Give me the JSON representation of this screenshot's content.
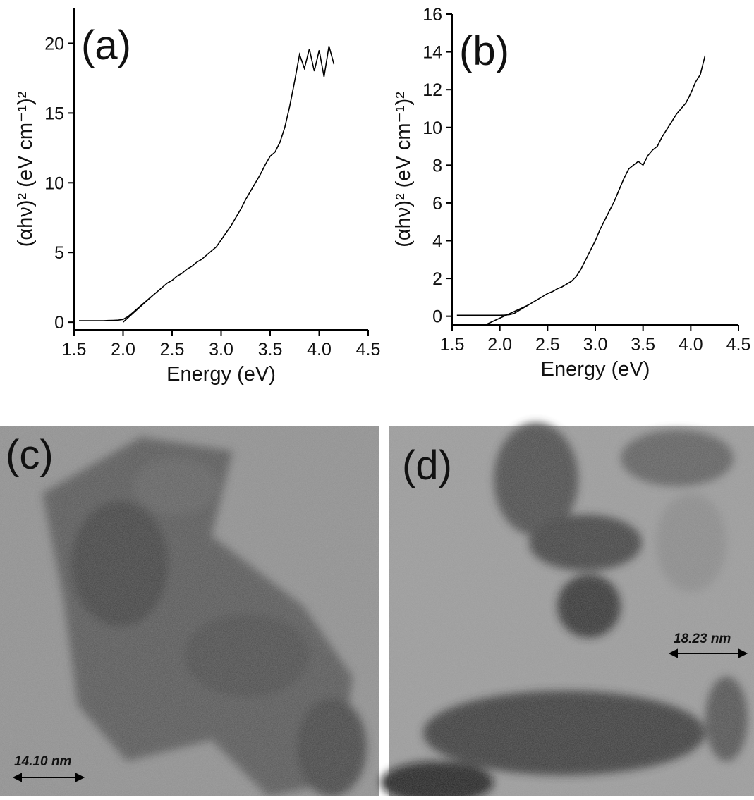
{
  "chart_data": [
    {
      "type": "line",
      "annotation": "(a)",
      "xlabel": "Energy (eV)",
      "ylabel": "(αhν)² (eV cm⁻¹)²",
      "color": "#000000",
      "x": [
        1.55,
        1.6,
        1.65,
        1.7,
        1.75,
        1.8,
        1.85,
        1.9,
        1.95,
        2.0,
        2.05,
        2.1,
        2.15,
        2.2,
        2.25,
        2.3,
        2.35,
        2.4,
        2.45,
        2.5,
        2.55,
        2.6,
        2.65,
        2.7,
        2.75,
        2.8,
        2.85,
        2.9,
        2.95,
        3.0,
        3.05,
        3.1,
        3.15,
        3.2,
        3.25,
        3.3,
        3.35,
        3.4,
        3.45,
        3.5,
        3.55,
        3.6,
        3.65,
        3.7,
        3.75,
        3.8,
        3.85,
        3.9,
        3.95,
        4.0,
        4.05,
        4.1,
        4.15
      ],
      "values": [
        0.1,
        0.1,
        0.1,
        0.1,
        0.1,
        0.1,
        0.12,
        0.13,
        0.15,
        0.2,
        0.4,
        0.7,
        1.0,
        1.3,
        1.6,
        1.9,
        2.2,
        2.5,
        2.8,
        3.0,
        3.3,
        3.5,
        3.8,
        4.0,
        4.3,
        4.5,
        4.8,
        5.1,
        5.4,
        5.9,
        6.4,
        6.9,
        7.5,
        8.1,
        8.8,
        9.4,
        10.0,
        10.6,
        11.3,
        11.9,
        12.2,
        12.9,
        14.0,
        15.5,
        17.3,
        19.2,
        18.2,
        19.6,
        18.0,
        19.5,
        17.6,
        19.8,
        18.5
      ],
      "fit_line": {
        "x": [
          2.0,
          2.3
        ],
        "values": [
          0,
          1.9
        ]
      },
      "xlim": [
        1.5,
        4.5
      ],
      "xticks": [
        1.5,
        {
          "value": 2,
          "label": "2.0"
        },
        2.5,
        {
          "value": 3,
          "label": "3.0"
        },
        3.5,
        {
          "value": 4,
          "label": "4.0"
        },
        4.5
      ],
      "ylim": [
        -0.55,
        22.5
      ],
      "yticks": [
        0,
        5,
        10,
        15,
        20
      ]
    },
    {
      "type": "line",
      "annotation": "(b)",
      "xlabel": "Energy (eV)",
      "ylabel": "(αhν)² (eV cm⁻¹)²",
      "color": "#000000",
      "x": [
        1.55,
        1.6,
        1.65,
        1.7,
        1.75,
        1.8,
        1.85,
        1.9,
        1.95,
        2.0,
        2.05,
        2.1,
        2.15,
        2.2,
        2.25,
        2.3,
        2.35,
        2.4,
        2.45,
        2.5,
        2.55,
        2.6,
        2.65,
        2.7,
        2.75,
        2.8,
        2.85,
        2.9,
        2.95,
        3.0,
        3.05,
        3.1,
        3.15,
        3.2,
        3.25,
        3.3,
        3.35,
        3.4,
        3.45,
        3.5,
        3.55,
        3.6,
        3.65,
        3.7,
        3.75,
        3.8,
        3.85,
        3.9,
        3.95,
        4.0,
        4.05,
        4.1,
        4.15
      ],
      "values": [
        0.05,
        0.05,
        0.05,
        0.05,
        0.05,
        0.05,
        0.05,
        0.05,
        0.05,
        0.05,
        0.06,
        0.08,
        0.15,
        0.3,
        0.45,
        0.6,
        0.75,
        0.9,
        1.05,
        1.2,
        1.3,
        1.45,
        1.55,
        1.7,
        1.85,
        2.1,
        2.5,
        3.0,
        3.5,
        4.0,
        4.6,
        5.1,
        5.6,
        6.1,
        6.7,
        7.3,
        7.8,
        8.0,
        8.2,
        8.0,
        8.5,
        8.8,
        9.0,
        9.5,
        9.9,
        10.3,
        10.7,
        11.0,
        11.3,
        11.8,
        12.4,
        12.8,
        13.8
      ],
      "fit_line": {
        "x": [
          1.85,
          2.3
        ],
        "values": [
          -0.45,
          0.6
        ]
      },
      "xlim": [
        1.5,
        4.5
      ],
      "xticks": [
        1.5,
        {
          "value": 2,
          "label": "2.0"
        },
        2.5,
        {
          "value": 3,
          "label": "3.0"
        },
        3.5,
        {
          "value": 4,
          "label": "4.0"
        },
        4.5
      ],
      "ylim": [
        -0.46,
        16
      ],
      "yticks": [
        0,
        2,
        4,
        6,
        8,
        10,
        12,
        14,
        16
      ]
    }
  ],
  "panels": [
    {
      "label": "(c)",
      "scale_bar": "14.10 nm"
    },
    {
      "label": "(d)",
      "scale_bar": "18.23 nm"
    }
  ]
}
